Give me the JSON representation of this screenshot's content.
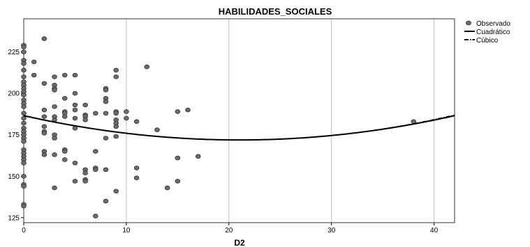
{
  "chart_data": {
    "type": "scatter",
    "title": "HABILIDADES_SOCIALES",
    "xlabel": "D2",
    "ylabel": "",
    "xlim": [
      0,
      42
    ],
    "ylim": [
      122,
      245
    ],
    "xticks": [
      0,
      10,
      20,
      30,
      40
    ],
    "yticks": [
      125,
      150,
      175,
      200,
      225
    ],
    "grid": "vertical",
    "legend_position": "top-right",
    "series": [
      {
        "name": "Observado",
        "type": "scatter",
        "color": "#6b6b6b",
        "points": [
          [
            0,
            229
          ],
          [
            0,
            228
          ],
          [
            0,
            225
          ],
          [
            0,
            220
          ],
          [
            0,
            218
          ],
          [
            0,
            214
          ],
          [
            0,
            210
          ],
          [
            0,
            207
          ],
          [
            0,
            205
          ],
          [
            0,
            203
          ],
          [
            0,
            201
          ],
          [
            0,
            199
          ],
          [
            0,
            196
          ],
          [
            0,
            194
          ],
          [
            0,
            192
          ],
          [
            0,
            188
          ],
          [
            0,
            185
          ],
          [
            0,
            182
          ],
          [
            0,
            179
          ],
          [
            0,
            177
          ],
          [
            0,
            175
          ],
          [
            0,
            173
          ],
          [
            0,
            171
          ],
          [
            0,
            166
          ],
          [
            0,
            164
          ],
          [
            0,
            162
          ],
          [
            0,
            160
          ],
          [
            0,
            158
          ],
          [
            0,
            150
          ],
          [
            0,
            145
          ],
          [
            0,
            144
          ],
          [
            0,
            133
          ],
          [
            0,
            132
          ],
          [
            1,
            219
          ],
          [
            1,
            211
          ],
          [
            2,
            233
          ],
          [
            2,
            206
          ],
          [
            2,
            190
          ],
          [
            2,
            186
          ],
          [
            2,
            180
          ],
          [
            2,
            177
          ],
          [
            2,
            176
          ],
          [
            2,
            165
          ],
          [
            2,
            163
          ],
          [
            3,
            210
          ],
          [
            3,
            205
          ],
          [
            3,
            203
          ],
          [
            3,
            202
          ],
          [
            3,
            192
          ],
          [
            3,
            186
          ],
          [
            3,
            184
          ],
          [
            3,
            175
          ],
          [
            3,
            173
          ],
          [
            3,
            163
          ],
          [
            3,
            143
          ],
          [
            4,
            211
          ],
          [
            4,
            197
          ],
          [
            4,
            189
          ],
          [
            4,
            188
          ],
          [
            4,
            186
          ],
          [
            4,
            166
          ],
          [
            4,
            165
          ],
          [
            4,
            160
          ],
          [
            5,
            211
          ],
          [
            5,
            200
          ],
          [
            5,
            193
          ],
          [
            5,
            190
          ],
          [
            5,
            185
          ],
          [
            5,
            179
          ],
          [
            5,
            158
          ],
          [
            5,
            147
          ],
          [
            6,
            193
          ],
          [
            6,
            187
          ],
          [
            6,
            186
          ],
          [
            6,
            184
          ],
          [
            6,
            154
          ],
          [
            6,
            152
          ],
          [
            6,
            148
          ],
          [
            6,
            147
          ],
          [
            7,
            188
          ],
          [
            7,
            165
          ],
          [
            7,
            155
          ],
          [
            7,
            154
          ],
          [
            7,
            126
          ],
          [
            8,
            203
          ],
          [
            8,
            202
          ],
          [
            8,
            197
          ],
          [
            8,
            195
          ],
          [
            8,
            188
          ],
          [
            8,
            173
          ],
          [
            8,
            154
          ],
          [
            8,
            135
          ],
          [
            9,
            214
          ],
          [
            9,
            210
          ],
          [
            9,
            189
          ],
          [
            9,
            188
          ],
          [
            9,
            184
          ],
          [
            9,
            182
          ],
          [
            9,
            180
          ],
          [
            9,
            174
          ],
          [
            9,
            141
          ],
          [
            10,
            189
          ],
          [
            10,
            185
          ],
          [
            11,
            183
          ],
          [
            11,
            155
          ],
          [
            11,
            149
          ],
          [
            12,
            216
          ],
          [
            13,
            178
          ],
          [
            14,
            143
          ],
          [
            15,
            189
          ],
          [
            15,
            161
          ],
          [
            15,
            147
          ],
          [
            16,
            190
          ],
          [
            17,
            162
          ],
          [
            38,
            183
          ]
        ]
      },
      {
        "name": "Cuadrático",
        "type": "line",
        "style": "solid",
        "equation": {
          "a": 186.6,
          "b": -1.4,
          "c": 0.0333
        }
      },
      {
        "name": "Cúbico",
        "type": "line",
        "style": "dashed",
        "equation": {
          "a": 186.4,
          "b": -1.36,
          "c": 0.031,
          "d": 4e-05
        }
      }
    ]
  }
}
